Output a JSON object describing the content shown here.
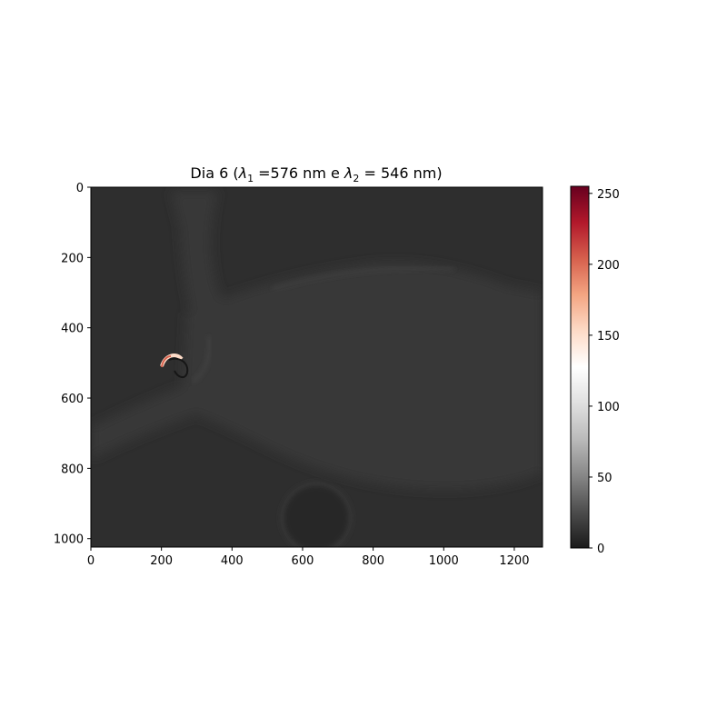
{
  "chart_data": {
    "type": "heatmap",
    "title_parts": {
      "prefix": "Dia 6 (",
      "lambda": "λ",
      "sub1": "1",
      "mid": " =576 nm e ",
      "sub2": "2",
      "suffix": " = 546 nm)"
    },
    "x_ticks": [
      0,
      200,
      400,
      600,
      800,
      1000,
      1200
    ],
    "y_ticks": [
      0,
      200,
      400,
      600,
      800,
      1000
    ],
    "xlim": [
      0,
      1280
    ],
    "ylim": [
      1024,
      0
    ],
    "colorbar": {
      "range": [
        0,
        255
      ],
      "ticks": [
        0,
        50,
        100,
        150,
        200,
        250
      ],
      "colors": [
        "#1a1a1a",
        "#4d4d4d",
        "#878787",
        "#bababa",
        "#e0e0e0",
        "#ffffff",
        "#fddbc7",
        "#f4a582",
        "#d6604d",
        "#b2182b",
        "#67001f"
      ]
    },
    "image_colors": {
      "background": "#2e2e2e",
      "body": "#383838",
      "bright_artifact": "#fddbc7",
      "red_artifact": "#d6604d"
    }
  }
}
